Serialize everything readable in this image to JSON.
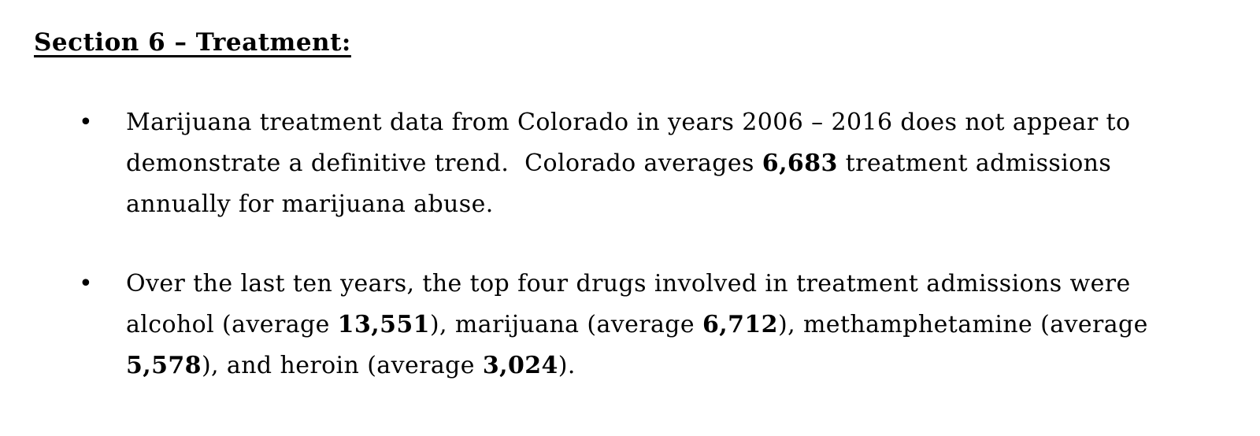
{
  "page": {
    "background_color": "#ffffff",
    "text_color": "#000000"
  },
  "heading": {
    "text": "Section 6 – Treatment:"
  },
  "bullets": [
    {
      "marker": "•",
      "lines": [
        {
          "segments": [
            {
              "text": "Marijuana treatment data from Colorado in years 2006 – 2016 does not appear to",
              "bold": false
            }
          ]
        },
        {
          "segments": [
            {
              "text": "demonstrate a definitive trend.  Colorado averages ",
              "bold": false
            },
            {
              "text": "6,683",
              "bold": true
            },
            {
              "text": " treatment admissions",
              "bold": false
            }
          ]
        },
        {
          "segments": [
            {
              "text": "annually for marijuana abuse.",
              "bold": false
            }
          ]
        }
      ]
    },
    {
      "marker": "•",
      "lines": [
        {
          "segments": [
            {
              "text": "Over the last ten years, the top four drugs involved in treatment admissions were",
              "bold": false
            }
          ]
        },
        {
          "segments": [
            {
              "text": "alcohol (average ",
              "bold": false
            },
            {
              "text": "13,551",
              "bold": true
            },
            {
              "text": "), marijuana (average ",
              "bold": false
            },
            {
              "text": "6,712",
              "bold": true
            },
            {
              "text": "), methamphetamine (average",
              "bold": false
            }
          ]
        },
        {
          "segments": [
            {
              "text": "5,578",
              "bold": true
            },
            {
              "text": "), and heroin (average ",
              "bold": false
            },
            {
              "text": "3,024",
              "bold": true
            },
            {
              "text": ").",
              "bold": false
            }
          ]
        }
      ]
    }
  ]
}
